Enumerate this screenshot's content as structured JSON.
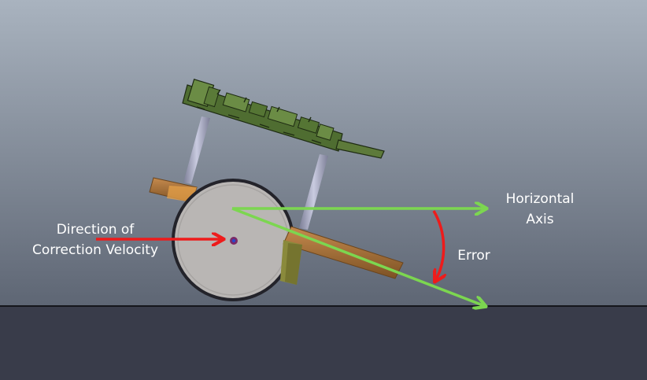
{
  "labels": {
    "direction_line1": "Direction of",
    "direction_line2": "Correction Velocity",
    "horizontal_line1": "Horizontal",
    "horizontal_line2": "Axis",
    "error": "Error"
  },
  "colors": {
    "sky_top": "#a9b3bf",
    "sky_bottom": "#5e6674",
    "ground": "#393c4a",
    "ground_line": "#15161c",
    "wheel": "#b9b6b4",
    "wheel_rim": "#23232a",
    "arrow_green": "#7cd650",
    "arrow_red": "#ee1b1b",
    "board": "#5d7a3a",
    "strut": "#a4a6bd",
    "chassis": "#a7703a"
  },
  "icons": {
    "robot": "self-balancing-robot",
    "wheel": "wheel-icon",
    "axle": "axle-icon"
  }
}
